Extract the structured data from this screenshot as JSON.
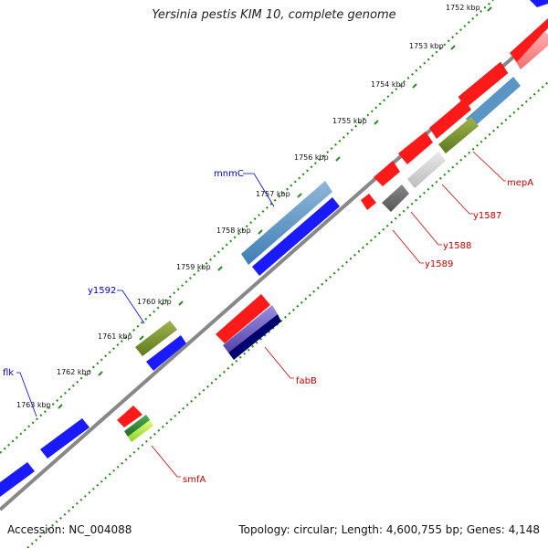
{
  "title": "Yersinia pestis KIM 10, complete genome",
  "accession": "Accession: NC_004088",
  "summary": "Topology: circular; Length: 4,600,755 bp; Genes: 4,148",
  "colors": {
    "forward_label": "#0000cc",
    "reverse_label": "#cc0000",
    "backbone": "#888888",
    "tick_dots": "#2e8b22"
  },
  "ticks": [
    "1752 kbp",
    "1753 kbp",
    "1754 kbp",
    "1755 kbp",
    "1756 kbp",
    "1757 kbp",
    "1758 kbp",
    "1759 kbp",
    "1760 kbp",
    "1761 kbp",
    "1762 kbp",
    "1763 kbp"
  ],
  "gene_labels": [
    {
      "id": "mnmC",
      "text": "mnmC",
      "strand": "forward"
    },
    {
      "id": "y1592",
      "text": "y1592",
      "strand": "forward"
    },
    {
      "id": "flk",
      "text": "flk",
      "strand": "forward"
    },
    {
      "id": "mepA",
      "text": "mepA",
      "strand": "reverse"
    },
    {
      "id": "y1587",
      "text": "y1587",
      "strand": "reverse"
    },
    {
      "id": "y1588",
      "text": "y1588",
      "strand": "reverse"
    },
    {
      "id": "y1589",
      "text": "y1589",
      "strand": "reverse"
    },
    {
      "id": "fabB",
      "text": "fabB",
      "strand": "reverse"
    },
    {
      "id": "smfA",
      "text": "smfA",
      "strand": "reverse"
    }
  ]
}
